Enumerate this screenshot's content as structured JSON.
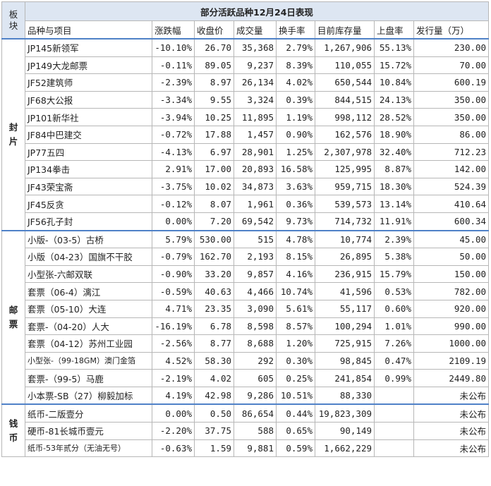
{
  "title": "部分活跃品种12月24日表现",
  "corner_label": "板块",
  "headers": [
    "品种与项目",
    "涨跌幅",
    "收盘价",
    "成交量",
    "换手率",
    "目前库存量",
    "上盘率",
    "发行量（万）"
  ],
  "sections": [
    {
      "label": "封片",
      "rows": [
        {
          "name": "JP145新领军",
          "change": "-10.10%",
          "dir": "neg",
          "close": "26.70",
          "volume": "35,368",
          "turnover": "2.79%",
          "stock": "1,267,906",
          "listing": "55.13%",
          "issue": "230.00"
        },
        {
          "name": "JP149大龙邮票",
          "change": "-0.11%",
          "dir": "neg",
          "close": "89.05",
          "volume": "9,237",
          "turnover": "8.39%",
          "stock": "110,055",
          "listing": "15.72%",
          "issue": "70.00"
        },
        {
          "name": "JF52建筑师",
          "change": "-2.39%",
          "dir": "neg",
          "close": "8.97",
          "volume": "26,134",
          "turnover": "4.02%",
          "stock": "650,544",
          "listing": "10.84%",
          "issue": "600.19"
        },
        {
          "name": "JF68大公报",
          "change": "-3.34%",
          "dir": "neg",
          "close": "9.55",
          "volume": "3,324",
          "turnover": "0.39%",
          "stock": "844,515",
          "listing": "24.13%",
          "issue": "350.00"
        },
        {
          "name": "JP101新华社",
          "change": "-3.94%",
          "dir": "neg",
          "close": "10.25",
          "volume": "11,895",
          "turnover": "1.19%",
          "stock": "998,112",
          "listing": "28.52%",
          "issue": "350.00"
        },
        {
          "name": "JF84中巴建交",
          "change": "-0.72%",
          "dir": "neg",
          "close": "17.88",
          "volume": "1,457",
          "turnover": "0.90%",
          "stock": "162,576",
          "listing": "18.90%",
          "issue": "86.00"
        },
        {
          "name": "JP77五四",
          "change": "-4.13%",
          "dir": "neg",
          "close": "6.97",
          "volume": "28,901",
          "turnover": "1.25%",
          "stock": "2,307,978",
          "listing": "32.40%",
          "issue": "712.23"
        },
        {
          "name": "JP134拳击",
          "change": "2.91%",
          "dir": "pos",
          "close": "17.00",
          "volume": "20,893",
          "turnover": "16.58%",
          "stock": "125,995",
          "listing": "8.87%",
          "issue": "142.00"
        },
        {
          "name": "JF43荣宝斋",
          "change": "-3.75%",
          "dir": "neg",
          "close": "10.02",
          "volume": "34,873",
          "turnover": "3.63%",
          "stock": "959,715",
          "listing": "18.30%",
          "issue": "524.39"
        },
        {
          "name": "JF45反贪",
          "change": "-0.12%",
          "dir": "neg",
          "close": "8.07",
          "volume": "1,961",
          "turnover": "0.36%",
          "stock": "539,573",
          "listing": "13.14%",
          "issue": "410.64"
        },
        {
          "name": "JF56孔子封",
          "change": "0.00%",
          "dir": "flat",
          "close": "7.20",
          "volume": "69,542",
          "turnover": "9.73%",
          "stock": "714,732",
          "listing": "11.91%",
          "issue": "600.34"
        }
      ]
    },
    {
      "label": "邮票",
      "rows": [
        {
          "name": "小版-（03-5）古桥",
          "change": "5.79%",
          "dir": "pos",
          "close": "530.00",
          "volume": "515",
          "turnover": "4.78%",
          "stock": "10,774",
          "listing": "2.39%",
          "issue": "45.00"
        },
        {
          "name": "小版（04-23）国旗不干胶",
          "change": "-0.79%",
          "dir": "neg",
          "close": "162.70",
          "volume": "2,193",
          "turnover": "8.15%",
          "stock": "26,895",
          "listing": "5.38%",
          "issue": "50.00"
        },
        {
          "name": "小型张-六邮双联",
          "change": "-0.90%",
          "dir": "neg",
          "close": "33.20",
          "volume": "9,857",
          "turnover": "4.16%",
          "stock": "236,915",
          "listing": "15.79%",
          "issue": "150.00"
        },
        {
          "name": "套票（06-4）漓江",
          "change": "-0.59%",
          "dir": "neg",
          "close": "40.63",
          "volume": "4,466",
          "turnover": "10.74%",
          "stock": "41,596",
          "listing": "0.53%",
          "issue": "782.00"
        },
        {
          "name": "套票（05-10）大连",
          "change": "4.71%",
          "dir": "pos",
          "close": "23.35",
          "volume": "3,090",
          "turnover": "5.61%",
          "stock": "55,117",
          "listing": "0.60%",
          "issue": "920.00"
        },
        {
          "name": "套票-（04-20）人大",
          "change": "-16.19%",
          "dir": "neg",
          "close": "6.78",
          "volume": "8,598",
          "turnover": "8.57%",
          "stock": "100,294",
          "listing": "1.01%",
          "issue": "990.00"
        },
        {
          "name": "套票（04-12）苏州工业园",
          "change": "-2.56%",
          "dir": "neg",
          "close": "8.77",
          "volume": "8,688",
          "turnover": "1.20%",
          "stock": "725,915",
          "listing": "7.26%",
          "issue": "1000.00"
        },
        {
          "name": "小型张-（99-18GM）澳门金箔",
          "change": "4.52%",
          "dir": "pos",
          "close": "58.30",
          "volume": "292",
          "turnover": "0.30%",
          "stock": "98,845",
          "listing": "0.47%",
          "issue": "2109.19",
          "small": true
        },
        {
          "name": "套票-（99-5）马鹿",
          "change": "-2.19%",
          "dir": "neg",
          "close": "4.02",
          "volume": "605",
          "turnover": "0.25%",
          "stock": "241,854",
          "listing": "0.99%",
          "issue": "2449.80"
        },
        {
          "name": "小本票-SB（27）柳毅加标",
          "change": "4.19%",
          "dir": "pos",
          "close": "42.98",
          "volume": "9,286",
          "turnover": "10.51%",
          "stock": "88,330",
          "listing": "",
          "issue": "未公布",
          "issue_text": true
        }
      ]
    },
    {
      "label": "钱币",
      "rows": [
        {
          "name": "纸币-二版壹分",
          "change": "0.00%",
          "dir": "flat",
          "close": "0.50",
          "volume": "86,654",
          "turnover": "0.44%",
          "stock": "19,823,309",
          "listing": "",
          "issue": "未公布",
          "issue_text": true
        },
        {
          "name": "硬币-81长城币壹元",
          "change": "-2.20%",
          "dir": "neg",
          "close": "37.75",
          "volume": "588",
          "turnover": "0.65%",
          "stock": "90,149",
          "listing": "",
          "issue": "未公布",
          "issue_text": true
        },
        {
          "name": "纸币-53年贰分（无油无号）",
          "change": "-0.63%",
          "dir": "neg",
          "close": "1.59",
          "volume": "9,881",
          "turnover": "0.59%",
          "stock": "1,662,229",
          "listing": "",
          "issue": "未公布",
          "issue_text": true,
          "small": true
        }
      ]
    }
  ]
}
